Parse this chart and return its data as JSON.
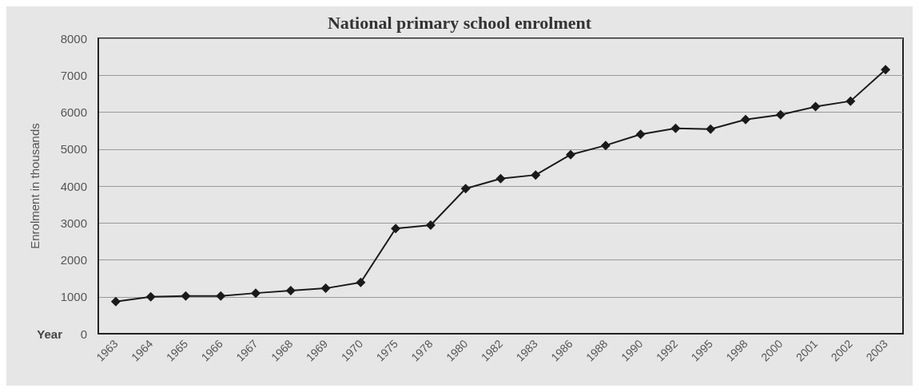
{
  "chart_data": {
    "type": "line",
    "title": "National primary school enrolment",
    "xlabel": "Year",
    "ylabel": "Enrolment in thousands",
    "categories": [
      "1963",
      "1964",
      "1965",
      "1966",
      "1967",
      "1968",
      "1969",
      "1970",
      "1975",
      "1978",
      "1980",
      "1982",
      "1983",
      "1986",
      "1988",
      "1990",
      "1992",
      "1995",
      "1998",
      "2000",
      "2001",
      "2002",
      "2003"
    ],
    "series": [
      {
        "color": "#1a1a1a",
        "values": [
          870,
          1000,
          1020,
          1020,
          1100,
          1170,
          1230,
          1390,
          2850,
          2940,
          3930,
          4200,
          4300,
          4850,
          5100,
          5400,
          5560,
          5540,
          5800,
          5930,
          6150,
          6300,
          7150
        ]
      }
    ],
    "ylim": [
      0,
      8000
    ],
    "yticks": [
      0,
      1000,
      2000,
      3000,
      4000,
      5000,
      6000,
      7000,
      8000
    ],
    "grid": "y",
    "marker": "diamond",
    "line_style": "solid"
  }
}
